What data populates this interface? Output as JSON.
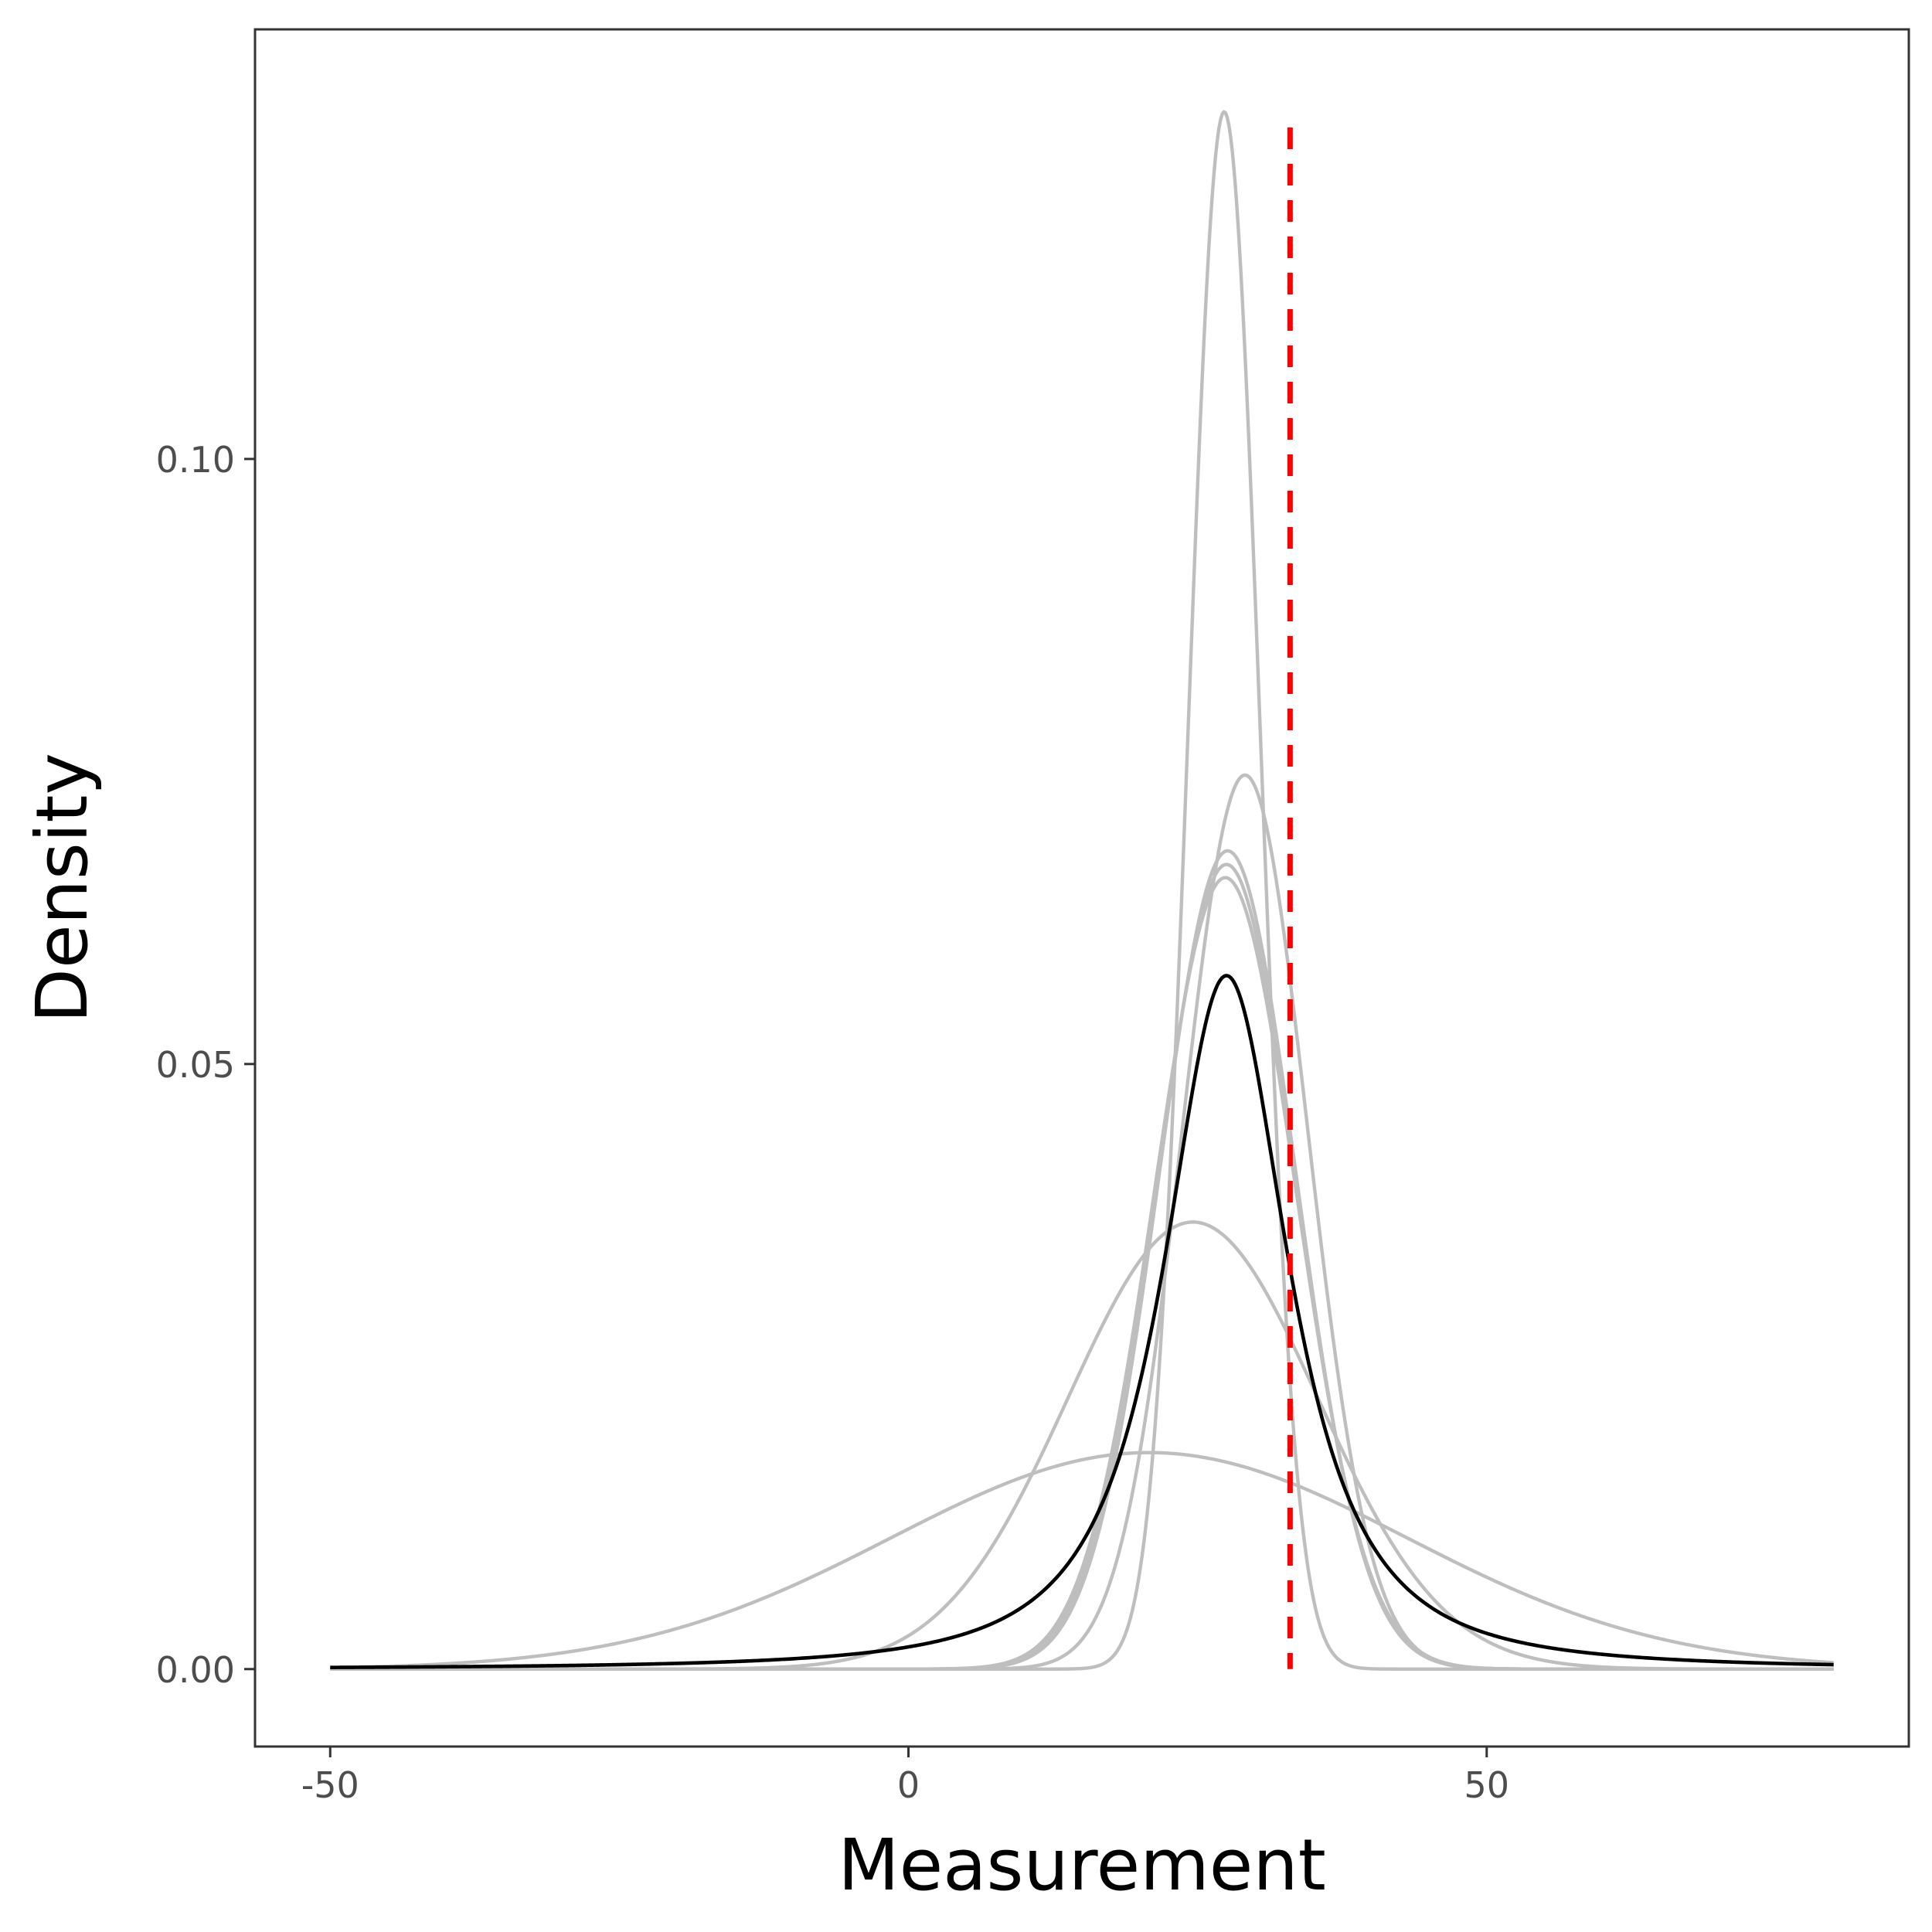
{
  "chart_data": {
    "type": "line",
    "title": "",
    "xlabel": "Measurement",
    "ylabel": "Density",
    "xlim": [
      -56.5,
      86.5
    ],
    "ylim": [
      -0.0064,
      0.1355
    ],
    "xticks": [
      -50,
      0,
      50
    ],
    "xtick_labels": [
      "-50",
      "0",
      "50"
    ],
    "yticks": [
      0.0,
      0.05,
      0.1
    ],
    "ytick_labels": [
      "0.00",
      "0.05",
      "0.10"
    ],
    "grid": false,
    "legend": "none",
    "x_range": [
      -50,
      80
    ],
    "series": [
      {
        "kind": "normal",
        "mean": 27.3,
        "sd": 3.1,
        "color": "#bebebe"
      },
      {
        "kind": "normal",
        "mean": 29.1,
        "sd": 5.4,
        "color": "#bebebe"
      },
      {
        "kind": "normal",
        "mean": 27.6,
        "sd": 5.9,
        "color": "#bebebe"
      },
      {
        "kind": "normal",
        "mean": 27.5,
        "sd": 6.0,
        "color": "#bebebe"
      },
      {
        "kind": "normal",
        "mean": 27.4,
        "sd": 6.1,
        "color": "#bebebe"
      },
      {
        "kind": "normal",
        "mean": 24.6,
        "sd": 10.8,
        "color": "#bebebe"
      },
      {
        "kind": "normal",
        "mean": 20.8,
        "sd": 22.3,
        "color": "#bebebe"
      },
      {
        "kind": "t",
        "mean": 27.5,
        "scale": 6.0,
        "df": 1.6,
        "color": "#000000"
      }
    ],
    "reference_line": {
      "x": 33.0,
      "color": "#ff0000",
      "style": "dashed"
    }
  }
}
